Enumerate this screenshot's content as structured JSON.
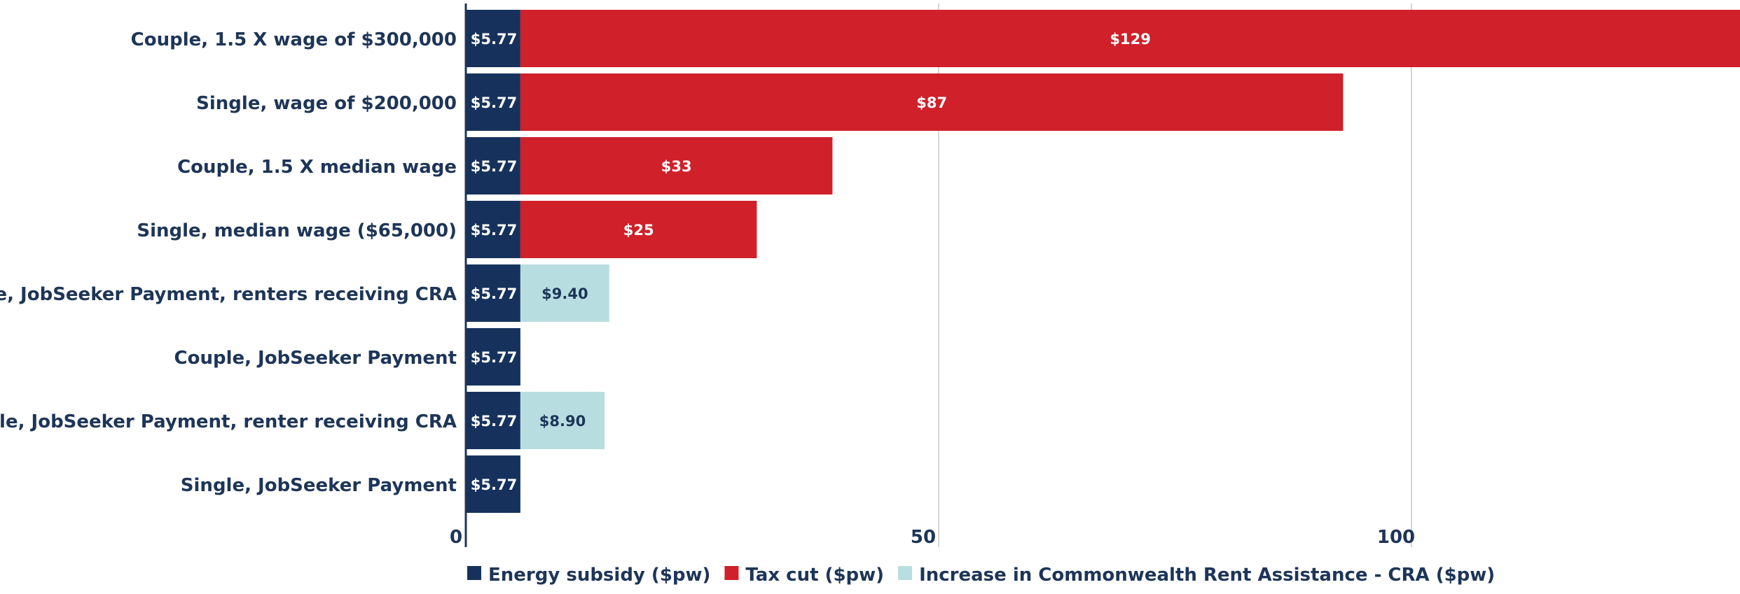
{
  "chart_data": {
    "type": "bar",
    "orientation": "horizontal",
    "stacked": true,
    "categories": [
      "Couple, 1.5 X wage of $300,000",
      "Single, wage of $200,000",
      "Couple, 1.5 X median wage",
      "Single, median wage ($65,000)",
      "Couple, JobSeeker Payment, renters receiving CRA",
      "Couple, JobSeeker Payment",
      "Single, JobSeeker Payment, renter receiving CRA",
      "Single, JobSeeker Payment"
    ],
    "series": [
      {
        "name": "Energy subsidy ($pw)",
        "color": "#16325c",
        "label_color": "#ffffff",
        "values": [
          5.77,
          5.77,
          5.77,
          5.77,
          5.77,
          5.77,
          5.77,
          5.77
        ],
        "labels": [
          "$5.77",
          "$5.77",
          "$5.77",
          "$5.77",
          "$5.77",
          "$5.77",
          "$5.77",
          "$5.77"
        ]
      },
      {
        "name": "Tax cut ($pw)",
        "color": "#d0202a",
        "label_color": "#ffffff",
        "values": [
          129,
          87,
          33,
          25,
          0,
          0,
          0,
          0
        ],
        "labels": [
          "$129",
          "$87",
          "$33",
          "$25",
          "",
          "",
          "",
          ""
        ]
      },
      {
        "name": "Increase in Commonwealth Rent Assistance - CRA ($pw)",
        "color": "#b8dde1",
        "label_color": "#1d3557",
        "values": [
          0,
          0,
          0,
          0,
          9.4,
          0,
          8.9,
          0
        ],
        "labels": [
          "",
          "",
          "",
          "",
          "$9.40",
          "",
          "$8.90",
          ""
        ]
      }
    ],
    "x_ticks": [
      0,
      50,
      100
    ],
    "xlim": [
      0,
      134.8
    ],
    "grid": true,
    "legend_position": "bottom",
    "title": "",
    "xlabel": "",
    "ylabel": ""
  }
}
